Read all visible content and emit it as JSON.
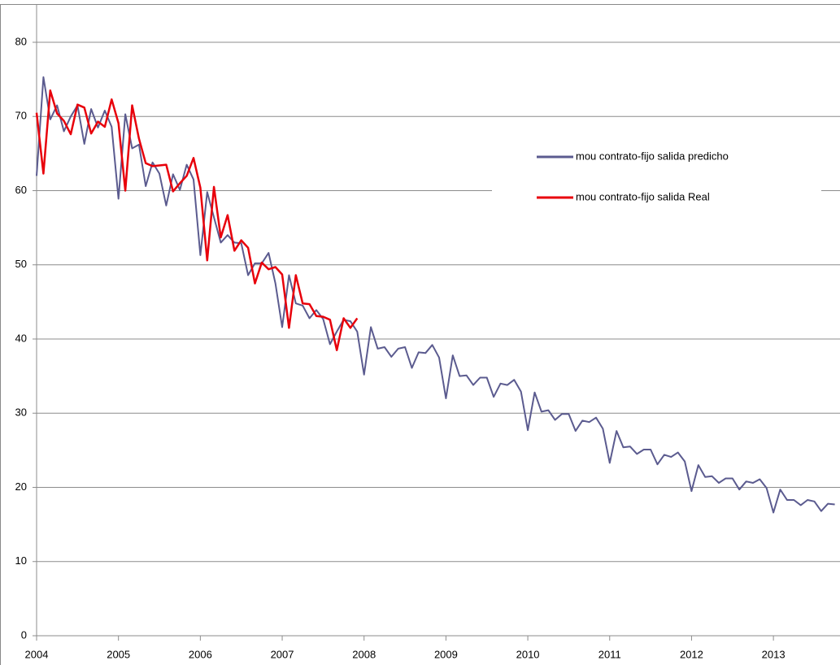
{
  "chart_data": {
    "type": "line",
    "categories": [
      "2004",
      null,
      null,
      null,
      null,
      null,
      null,
      null,
      null,
      null,
      null,
      null,
      "2005",
      null,
      null,
      null,
      null,
      null,
      null,
      null,
      null,
      null,
      null,
      null,
      "2006",
      null,
      null,
      null,
      null,
      null,
      null,
      null,
      null,
      null,
      null,
      null,
      "2007",
      null,
      null,
      null,
      null,
      null,
      null,
      null,
      null,
      null,
      null,
      null,
      "2008",
      null,
      null,
      null,
      null,
      null,
      null,
      null,
      null,
      null,
      null,
      null,
      "2009",
      null,
      null,
      null,
      null,
      null,
      null,
      null,
      null,
      null,
      null,
      null,
      "2010",
      null,
      null,
      null,
      null,
      null,
      null,
      null,
      null,
      null,
      null,
      null,
      "2011",
      null,
      null,
      null,
      null,
      null,
      null,
      null,
      null,
      null,
      null,
      null,
      "2012",
      null,
      null,
      null,
      null,
      null,
      null,
      null,
      null,
      null,
      null,
      null,
      "2013",
      null,
      null,
      null,
      null,
      null,
      null,
      null,
      null,
      null
    ],
    "series": [
      {
        "name": "mou contrato-fijo salida predicho",
        "color": "#5b5b8f",
        "values": [
          62,
          75.3,
          69.6,
          71.5,
          68,
          70,
          71.5,
          66.3,
          71,
          68.5,
          70.8,
          68.6,
          58.9,
          70.3,
          65.7,
          66.2,
          60.6,
          63.8,
          62.3,
          58,
          62.2,
          60.1,
          63.5,
          61.5,
          51.3,
          59.8,
          56.4,
          53,
          54,
          53,
          52.9,
          48.6,
          50.2,
          50.2,
          51.6,
          47.5,
          41.6,
          48.6,
          44.8,
          44.5,
          42.8,
          43.9,
          42.7,
          39.3,
          41,
          42.6,
          42.4,
          41,
          35.2,
          41.6,
          38.7,
          38.9,
          37.6,
          38.7,
          38.9,
          36.1,
          38.2,
          38.1,
          39.2,
          37.5,
          32,
          37.8,
          35,
          35.1,
          33.8,
          34.8,
          34.8,
          32.2,
          34,
          33.8,
          34.5,
          32.9,
          27.7,
          32.8,
          30.2,
          30.4,
          29.1,
          29.9,
          29.9,
          27.6,
          29,
          28.8,
          29.4,
          27.9,
          23.3,
          27.6,
          25.4,
          25.5,
          24.5,
          25.1,
          25.1,
          23.1,
          24.4,
          24.1,
          24.7,
          23.5,
          19.5,
          23,
          21.4,
          21.5,
          20.6,
          21.2,
          21.2,
          19.7,
          20.8,
          20.6,
          21.1,
          19.9,
          16.6,
          19.7,
          18.3,
          18.3,
          17.6,
          18.3,
          18.1,
          16.8,
          17.8,
          17.7
        ]
      },
      {
        "name": "mou contrato-fijo salida Real",
        "color": "#e8000b",
        "values": [
          70.5,
          62.3,
          73.5,
          70.4,
          69.4,
          67.6,
          71.6,
          71.2,
          67.7,
          69.3,
          68.6,
          72.3,
          69.1,
          60,
          71.5,
          67,
          63.7,
          63.3,
          63.4,
          63.5,
          59.9,
          61,
          62,
          64.4,
          60.4,
          50.6,
          60.5,
          53.7,
          56.7,
          51.9,
          53.3,
          52.3,
          47.5,
          50.3,
          49.4,
          49.7,
          48.7,
          41.5,
          48.6,
          44.8,
          44.7,
          43.1,
          43,
          42.6,
          38.5,
          42.8,
          41.5,
          42.8,
          null,
          null,
          null,
          null,
          null,
          null,
          null,
          null,
          null,
          null,
          null,
          null,
          null,
          null,
          null,
          null,
          null,
          null,
          null,
          null,
          null,
          null,
          null,
          null,
          null,
          null,
          null,
          null,
          null,
          null,
          null,
          null,
          null,
          null,
          null,
          null,
          null,
          null,
          null,
          null,
          null,
          null,
          null,
          null,
          null,
          null,
          null,
          null,
          null,
          null,
          null,
          null,
          null,
          null,
          null,
          null,
          null,
          null,
          null,
          null,
          null,
          null,
          null,
          null,
          null,
          null,
          null,
          null,
          null,
          null
        ]
      }
    ],
    "ylim": [
      0,
      80
    ],
    "yticks": [
      0,
      10,
      20,
      30,
      40,
      50,
      60,
      70,
      80
    ],
    "grid": true,
    "legend": "right"
  }
}
